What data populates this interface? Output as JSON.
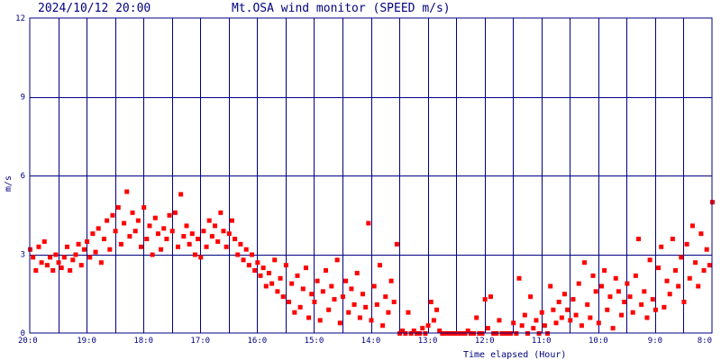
{
  "header": {
    "timestamp": "2024/10/12 20:00",
    "title": "Mt.OSA wind monitor (SPEED m/s)"
  },
  "colors": {
    "axis": "#000080",
    "points": "#ff0000",
    "background": "#ffffff"
  },
  "chart_data": {
    "type": "scatter",
    "title": "Mt.OSA wind monitor (SPEED m/s)",
    "xlabel": "Time elapsed (Hour)",
    "ylabel": "m/s",
    "ylim": [
      0,
      12
    ],
    "y_ticks": [
      0,
      3,
      6,
      9,
      12
    ],
    "xlim": [
      0,
      24
    ],
    "x_axis_direction": "hours elapsed before 20:00",
    "x_ticks": [
      {
        "x": 0,
        "label": "20:0"
      },
      {
        "x": 2,
        "label": "19:0"
      },
      {
        "x": 4,
        "label": "18:0"
      },
      {
        "x": 6,
        "label": "17:0"
      },
      {
        "x": 8,
        "label": "16:0"
      },
      {
        "x": 10,
        "label": "15:0"
      },
      {
        "x": 12,
        "label": "14:0"
      },
      {
        "x": 14,
        "label": "13:0"
      },
      {
        "x": 16,
        "label": "12:0"
      },
      {
        "x": 18,
        "label": "11:0"
      },
      {
        "x": 20,
        "label": "10:0"
      },
      {
        "x": 22,
        "label": "9:0"
      },
      {
        "x": 24,
        "label": "8:0"
      }
    ],
    "grid": true,
    "series": [
      {
        "values": [
          [
            0.0,
            3.2
          ],
          [
            0.1,
            2.9
          ],
          [
            0.2,
            2.4
          ],
          [
            0.3,
            3.3
          ],
          [
            0.4,
            2.7
          ],
          [
            0.5,
            3.5
          ],
          [
            0.6,
            2.6
          ],
          [
            0.7,
            2.9
          ],
          [
            0.8,
            2.4
          ],
          [
            0.9,
            3.0
          ],
          [
            1.0,
            2.7
          ],
          [
            1.1,
            2.5
          ],
          [
            1.2,
            2.9
          ],
          [
            1.3,
            3.3
          ],
          [
            1.4,
            2.4
          ],
          [
            1.5,
            2.8
          ],
          [
            1.6,
            3.0
          ],
          [
            1.7,
            3.4
          ],
          [
            1.8,
            2.6
          ],
          [
            1.9,
            3.2
          ],
          [
            2.0,
            3.5
          ],
          [
            2.1,
            2.9
          ],
          [
            2.2,
            3.8
          ],
          [
            2.3,
            3.1
          ],
          [
            2.4,
            4.0
          ],
          [
            2.5,
            2.7
          ],
          [
            2.6,
            3.6
          ],
          [
            2.7,
            4.3
          ],
          [
            2.8,
            3.2
          ],
          [
            2.9,
            4.5
          ],
          [
            3.0,
            3.9
          ],
          [
            3.1,
            4.8
          ],
          [
            3.2,
            3.4
          ],
          [
            3.3,
            4.2
          ],
          [
            3.4,
            5.4
          ],
          [
            3.5,
            3.7
          ],
          [
            3.6,
            4.6
          ],
          [
            3.7,
            3.9
          ],
          [
            3.8,
            4.3
          ],
          [
            3.9,
            3.3
          ],
          [
            4.0,
            4.8
          ],
          [
            4.1,
            3.6
          ],
          [
            4.2,
            4.1
          ],
          [
            4.3,
            3.0
          ],
          [
            4.4,
            4.4
          ],
          [
            4.5,
            3.8
          ],
          [
            4.6,
            3.2
          ],
          [
            4.7,
            4.0
          ],
          [
            4.8,
            3.6
          ],
          [
            4.9,
            4.5
          ],
          [
            5.0,
            3.9
          ],
          [
            5.1,
            4.6
          ],
          [
            5.2,
            3.3
          ],
          [
            5.3,
            5.3
          ],
          [
            5.4,
            3.7
          ],
          [
            5.5,
            4.1
          ],
          [
            5.6,
            3.4
          ],
          [
            5.7,
            3.8
          ],
          [
            5.8,
            3.0
          ],
          [
            5.9,
            3.6
          ],
          [
            6.0,
            2.9
          ],
          [
            6.1,
            3.9
          ],
          [
            6.2,
            3.3
          ],
          [
            6.3,
            4.3
          ],
          [
            6.4,
            3.7
          ],
          [
            6.5,
            4.1
          ],
          [
            6.6,
            3.5
          ],
          [
            6.7,
            4.6
          ],
          [
            6.8,
            3.9
          ],
          [
            6.9,
            3.3
          ],
          [
            7.0,
            3.8
          ],
          [
            7.1,
            4.3
          ],
          [
            7.2,
            3.6
          ],
          [
            7.3,
            3.0
          ],
          [
            7.4,
            3.4
          ],
          [
            7.5,
            2.8
          ],
          [
            7.6,
            3.2
          ],
          [
            7.7,
            2.6
          ],
          [
            7.8,
            3.0
          ],
          [
            7.9,
            2.4
          ],
          [
            8.0,
            2.7
          ],
          [
            8.1,
            2.2
          ],
          [
            8.2,
            2.5
          ],
          [
            8.3,
            1.8
          ],
          [
            8.4,
            2.3
          ],
          [
            8.5,
            1.9
          ],
          [
            8.6,
            2.8
          ],
          [
            8.7,
            1.6
          ],
          [
            8.8,
            2.1
          ],
          [
            8.9,
            1.4
          ],
          [
            9.0,
            2.6
          ],
          [
            9.1,
            1.2
          ],
          [
            9.2,
            1.9
          ],
          [
            9.3,
            0.8
          ],
          [
            9.4,
            2.2
          ],
          [
            9.5,
            1.0
          ],
          [
            9.6,
            1.7
          ],
          [
            9.7,
            2.5
          ],
          [
            9.8,
            0.6
          ],
          [
            9.9,
            1.5
          ],
          [
            10.0,
            1.2
          ],
          [
            10.1,
            2.0
          ],
          [
            10.2,
            0.5
          ],
          [
            10.3,
            1.6
          ],
          [
            10.4,
            2.4
          ],
          [
            10.5,
            0.9
          ],
          [
            10.6,
            1.8
          ],
          [
            10.7,
            1.3
          ],
          [
            10.8,
            2.8
          ],
          [
            10.9,
            0.4
          ],
          [
            11.0,
            1.4
          ],
          [
            11.1,
            2.0
          ],
          [
            11.2,
            0.8
          ],
          [
            11.3,
            1.7
          ],
          [
            11.4,
            1.1
          ],
          [
            11.5,
            2.3
          ],
          [
            11.6,
            0.6
          ],
          [
            11.7,
            1.5
          ],
          [
            11.8,
            1.0
          ],
          [
            11.9,
            4.2
          ],
          [
            12.0,
            0.5
          ],
          [
            12.1,
            1.8
          ],
          [
            12.2,
            1.1
          ],
          [
            12.3,
            2.6
          ],
          [
            12.4,
            0.3
          ],
          [
            12.5,
            1.4
          ],
          [
            12.6,
            0.8
          ],
          [
            12.7,
            2.0
          ],
          [
            12.8,
            1.2
          ],
          [
            12.9,
            3.4
          ],
          [
            13.0,
            0.0
          ],
          [
            13.1,
            0.1
          ],
          [
            13.2,
            0.0
          ],
          [
            13.3,
            0.8
          ],
          [
            13.4,
            0.0
          ],
          [
            13.5,
            0.1
          ],
          [
            13.6,
            0.0
          ],
          [
            13.7,
            0.0
          ],
          [
            13.8,
            0.2
          ],
          [
            13.9,
            0.0
          ],
          [
            14.0,
            0.3
          ],
          [
            14.1,
            1.2
          ],
          [
            14.2,
            0.5
          ],
          [
            14.3,
            0.9
          ],
          [
            14.4,
            0.1
          ],
          [
            14.5,
            0.0
          ],
          [
            14.6,
            0.0
          ],
          [
            14.7,
            0.0
          ],
          [
            14.8,
            0.0
          ],
          [
            14.9,
            0.0
          ],
          [
            15.0,
            0.0
          ],
          [
            15.1,
            0.0
          ],
          [
            15.2,
            0.0
          ],
          [
            15.3,
            0.0
          ],
          [
            15.4,
            0.1
          ],
          [
            15.5,
            0.0
          ],
          [
            15.6,
            0.0
          ],
          [
            15.7,
            0.6
          ],
          [
            15.8,
            0.0
          ],
          [
            15.9,
            0.0
          ],
          [
            16.0,
            1.3
          ],
          [
            16.1,
            0.2
          ],
          [
            16.2,
            1.4
          ],
          [
            16.3,
            0.0
          ],
          [
            16.4,
            0.0
          ],
          [
            16.5,
            0.5
          ],
          [
            16.6,
            0.0
          ],
          [
            16.7,
            0.0
          ],
          [
            16.8,
            0.0
          ],
          [
            16.9,
            0.0
          ],
          [
            17.0,
            0.4
          ],
          [
            17.1,
            0.0
          ],
          [
            17.2,
            2.1
          ],
          [
            17.3,
            0.3
          ],
          [
            17.4,
            0.7
          ],
          [
            17.5,
            0.0
          ],
          [
            17.6,
            1.4
          ],
          [
            17.7,
            0.2
          ],
          [
            17.8,
            0.5
          ],
          [
            17.9,
            0.0
          ],
          [
            18.0,
            0.8
          ],
          [
            18.1,
            0.3
          ],
          [
            18.2,
            0.0
          ],
          [
            18.3,
            1.8
          ],
          [
            18.4,
            0.9
          ],
          [
            18.5,
            0.4
          ],
          [
            18.6,
            1.2
          ],
          [
            18.7,
            0.6
          ],
          [
            18.8,
            1.5
          ],
          [
            18.9,
            0.9
          ],
          [
            19.0,
            0.5
          ],
          [
            19.1,
            1.3
          ],
          [
            19.2,
            0.7
          ],
          [
            19.3,
            1.9
          ],
          [
            19.4,
            0.3
          ],
          [
            19.5,
            2.7
          ],
          [
            19.6,
            1.1
          ],
          [
            19.7,
            0.6
          ],
          [
            19.8,
            2.2
          ],
          [
            19.9,
            1.6
          ],
          [
            20.0,
            0.4
          ],
          [
            20.1,
            1.8
          ],
          [
            20.2,
            2.4
          ],
          [
            20.3,
            0.9
          ],
          [
            20.4,
            1.4
          ],
          [
            20.5,
            0.2
          ],
          [
            20.6,
            2.1
          ],
          [
            20.7,
            1.6
          ],
          [
            20.8,
            0.7
          ],
          [
            20.9,
            1.2
          ],
          [
            21.0,
            1.9
          ],
          [
            21.1,
            1.4
          ],
          [
            21.2,
            0.8
          ],
          [
            21.3,
            2.2
          ],
          [
            21.4,
            3.6
          ],
          [
            21.5,
            1.1
          ],
          [
            21.6,
            1.6
          ],
          [
            21.7,
            0.6
          ],
          [
            21.8,
            2.8
          ],
          [
            21.9,
            1.3
          ],
          [
            22.0,
            0.9
          ],
          [
            22.1,
            2.5
          ],
          [
            22.2,
            3.3
          ],
          [
            22.3,
            1.0
          ],
          [
            22.4,
            2.0
          ],
          [
            22.5,
            1.5
          ],
          [
            22.6,
            3.6
          ],
          [
            22.7,
            2.4
          ],
          [
            22.8,
            1.8
          ],
          [
            22.9,
            2.9
          ],
          [
            23.0,
            1.2
          ],
          [
            23.1,
            3.4
          ],
          [
            23.2,
            2.1
          ],
          [
            23.3,
            4.1
          ],
          [
            23.4,
            2.7
          ],
          [
            23.5,
            1.8
          ],
          [
            23.6,
            3.8
          ],
          [
            23.7,
            2.4
          ],
          [
            23.8,
            3.2
          ],
          [
            23.9,
            2.6
          ],
          [
            24.0,
            5.0
          ]
        ]
      }
    ]
  }
}
